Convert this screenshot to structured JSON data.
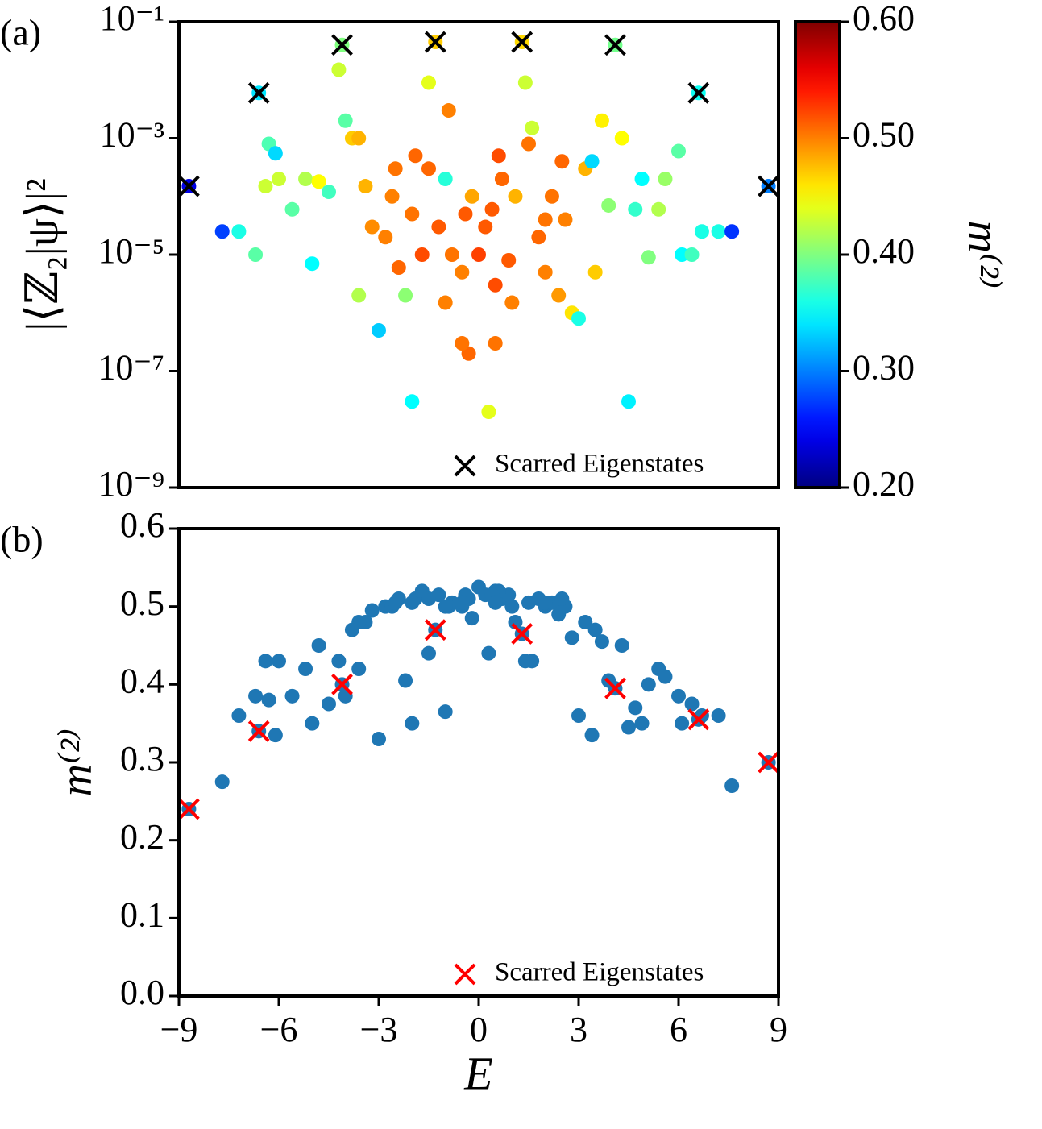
{
  "chart_data": [
    {
      "type": "scatter",
      "panel_label": "(a)",
      "ylabel": "|⟨ℤ₂|ψ⟩|²",
      "log_y": true,
      "xlim": [
        -9,
        9
      ],
      "ylim": [
        1e-09,
        0.1
      ],
      "yticks": [
        {
          "value": 1e-09,
          "label": "10⁻⁹"
        },
        {
          "value": 1e-07,
          "label": "10⁻⁷"
        },
        {
          "value": 1e-05,
          "label": "10⁻⁵"
        },
        {
          "value": 0.001,
          "label": "10⁻³"
        },
        {
          "value": 0.1,
          "label": "10⁻¹"
        }
      ],
      "colorbar": {
        "label": "m⁽²⁾",
        "colormap": "jet",
        "clim": [
          0.2,
          0.6
        ],
        "ticks": [
          {
            "value": 0.2,
            "label": "0.20"
          },
          {
            "value": 0.3,
            "label": "0.30"
          },
          {
            "value": 0.4,
            "label": "0.40"
          },
          {
            "value": 0.5,
            "label": "0.50"
          },
          {
            "value": 0.6,
            "label": "0.60"
          }
        ]
      },
      "points": {
        "x": [
          -8.7,
          -7.7,
          -7.2,
          -6.6,
          -6.3,
          -6.1,
          -6.4,
          -6.0,
          -6.7,
          -5.6,
          -5.2,
          -5.0,
          -4.8,
          -4.5,
          -4.2,
          -4.1,
          -4.0,
          -3.8,
          -3.6,
          -3.4,
          -3.2,
          -3.0,
          -2.8,
          -2.6,
          -2.4,
          -2.2,
          -2.0,
          -1.9,
          -1.7,
          -1.5,
          -1.3,
          -1.2,
          -1.0,
          -0.8,
          -0.5,
          -0.3,
          -0.2,
          0.0,
          0.2,
          0.3,
          0.5,
          0.7,
          0.9,
          1.1,
          1.3,
          1.4,
          1.6,
          1.8,
          2.0,
          2.2,
          2.4,
          2.6,
          2.8,
          3.0,
          3.2,
          3.4,
          3.5,
          3.7,
          3.9,
          4.1,
          4.3,
          4.5,
          4.7,
          4.9,
          5.1,
          5.4,
          5.6,
          6.0,
          6.1,
          6.4,
          6.6,
          6.7,
          7.2,
          7.6,
          8.7,
          -3.6,
          -2.5,
          -1.5,
          -0.9,
          0.6,
          1.5,
          2.5,
          -0.4,
          0.4,
          -2.0,
          2.0,
          -1.0,
          1.0,
          -0.5,
          0.5
        ],
        "y": [
          0.00015,
          2.5e-05,
          2.5e-05,
          0.006,
          0.0008,
          0.00055,
          0.00015,
          0.0002,
          1e-05,
          6e-05,
          0.0002,
          7e-06,
          0.00018,
          0.00012,
          0.015,
          0.04,
          0.002,
          0.001,
          2e-06,
          0.00015,
          3e-05,
          5e-07,
          2e-05,
          0.0001,
          6e-06,
          2e-06,
          3e-08,
          0.0005,
          1e-05,
          0.009,
          0.045,
          3e-05,
          0.0002,
          1e-05,
          5e-06,
          2e-07,
          0.0001,
          1e-05,
          3e-05,
          2e-08,
          3e-06,
          0.0002,
          8e-06,
          0.0001,
          0.045,
          0.009,
          0.0015,
          2e-05,
          5e-06,
          0.0001,
          2e-06,
          4e-05,
          1e-06,
          8e-07,
          0.0003,
          0.0004,
          5e-06,
          0.002,
          7e-05,
          0.04,
          0.001,
          3e-08,
          6e-05,
          0.0002,
          9e-06,
          6e-05,
          0.0002,
          0.0006,
          1e-05,
          1e-05,
          0.006,
          2.5e-05,
          2.5e-05,
          2.5e-05,
          0.00015,
          0.001,
          0.0003,
          0.0003,
          0.003,
          0.0005,
          0.0008,
          0.0004,
          5e-05,
          6e-05,
          5e-05,
          4e-05,
          1.5e-06,
          1.5e-06,
          3e-07,
          3e-07
        ],
        "c": [
          0.24,
          0.275,
          0.36,
          0.34,
          0.38,
          0.335,
          0.43,
          0.43,
          0.385,
          0.385,
          0.42,
          0.35,
          0.45,
          0.375,
          0.43,
          0.4,
          0.385,
          0.47,
          0.42,
          0.48,
          0.495,
          0.33,
          0.5,
          0.5,
          0.51,
          0.405,
          0.35,
          0.51,
          0.52,
          0.44,
          0.47,
          0.515,
          0.365,
          0.505,
          0.5,
          0.51,
          0.485,
          0.525,
          0.515,
          0.44,
          0.52,
          0.51,
          0.515,
          0.48,
          0.465,
          0.43,
          0.43,
          0.51,
          0.5,
          0.505,
          0.49,
          0.5,
          0.46,
          0.36,
          0.48,
          0.335,
          0.47,
          0.455,
          0.405,
          0.395,
          0.45,
          0.345,
          0.37,
          0.35,
          0.4,
          0.42,
          0.41,
          0.385,
          0.35,
          0.375,
          0.355,
          0.36,
          0.36,
          0.27,
          0.3,
          0.48,
          0.505,
          0.51,
          0.5,
          0.52,
          0.505,
          0.51,
          0.515,
          0.515,
          0.505,
          0.505,
          0.5,
          0.5,
          0.505,
          0.505
        ]
      },
      "scarred": {
        "name": "Scarred Eigenstates",
        "color": "#000000",
        "x": [
          -8.7,
          -6.6,
          -4.1,
          -1.3,
          1.3,
          4.1,
          6.6,
          8.7
        ],
        "y": [
          0.00015,
          0.006,
          0.04,
          0.045,
          0.045,
          0.04,
          0.006,
          0.00015
        ]
      }
    },
    {
      "type": "scatter",
      "panel_label": "(b)",
      "xlabel": "E",
      "ylabel": "m⁽²⁾",
      "xlim": [
        -9,
        9
      ],
      "ylim": [
        0,
        0.6
      ],
      "xticks": [
        {
          "value": -9,
          "label": "−9"
        },
        {
          "value": -6,
          "label": "−6"
        },
        {
          "value": -3,
          "label": "−3"
        },
        0,
        3,
        6,
        9
      ],
      "yticks": [
        {
          "value": 0,
          "label": "0.0"
        },
        0.1,
        0.2,
        0.3,
        0.4,
        0.5,
        0.6
      ],
      "points": {
        "color": "#1f77b4",
        "x": [
          -8.7,
          -7.7,
          -7.2,
          -6.6,
          -6.3,
          -6.1,
          -6.4,
          -6.0,
          -6.7,
          -5.6,
          -5.2,
          -5.0,
          -4.8,
          -4.5,
          -4.2,
          -4.1,
          -4.0,
          -3.8,
          -3.6,
          -3.4,
          -3.2,
          -3.0,
          -2.8,
          -2.6,
          -2.4,
          -2.2,
          -2.0,
          -1.9,
          -1.7,
          -1.5,
          -1.3,
          -1.2,
          -1.0,
          -0.8,
          -0.5,
          -0.3,
          -0.2,
          0.0,
          0.2,
          0.3,
          0.5,
          0.7,
          0.9,
          1.1,
          1.3,
          1.4,
          1.6,
          1.8,
          2.0,
          2.2,
          2.4,
          2.6,
          2.8,
          3.0,
          3.2,
          3.4,
          3.5,
          3.7,
          3.9,
          4.1,
          4.3,
          4.5,
          4.7,
          4.9,
          5.1,
          5.4,
          5.6,
          6.0,
          6.1,
          6.4,
          6.6,
          6.7,
          7.2,
          7.6,
          8.7,
          -3.6,
          -2.5,
          -1.5,
          -0.9,
          0.6,
          1.5,
          2.5,
          -0.4,
          0.4,
          -2.0,
          2.0,
          -1.0,
          1.0,
          -0.5,
          0.5
        ],
        "y": [
          0.24,
          0.275,
          0.36,
          0.34,
          0.38,
          0.335,
          0.43,
          0.43,
          0.385,
          0.385,
          0.42,
          0.35,
          0.45,
          0.375,
          0.43,
          0.4,
          0.385,
          0.47,
          0.42,
          0.48,
          0.495,
          0.33,
          0.5,
          0.5,
          0.51,
          0.405,
          0.35,
          0.51,
          0.52,
          0.44,
          0.47,
          0.515,
          0.365,
          0.505,
          0.5,
          0.51,
          0.485,
          0.525,
          0.515,
          0.44,
          0.52,
          0.51,
          0.515,
          0.48,
          0.465,
          0.43,
          0.43,
          0.51,
          0.5,
          0.505,
          0.49,
          0.5,
          0.46,
          0.36,
          0.48,
          0.335,
          0.47,
          0.455,
          0.405,
          0.395,
          0.45,
          0.345,
          0.37,
          0.35,
          0.4,
          0.42,
          0.41,
          0.385,
          0.35,
          0.375,
          0.355,
          0.36,
          0.36,
          0.27,
          0.3,
          0.48,
          0.505,
          0.51,
          0.5,
          0.52,
          0.505,
          0.51,
          0.515,
          0.515,
          0.505,
          0.505,
          0.5,
          0.5,
          0.505,
          0.505
        ]
      },
      "scarred": {
        "name": "Scarred Eigenstates",
        "color": "#ff0000",
        "x": [
          -8.7,
          -6.6,
          -4.1,
          -1.3,
          1.3,
          4.1,
          6.6,
          8.7
        ],
        "y": [
          0.24,
          0.34,
          0.4,
          0.47,
          0.465,
          0.395,
          0.355,
          0.3
        ]
      }
    }
  ]
}
